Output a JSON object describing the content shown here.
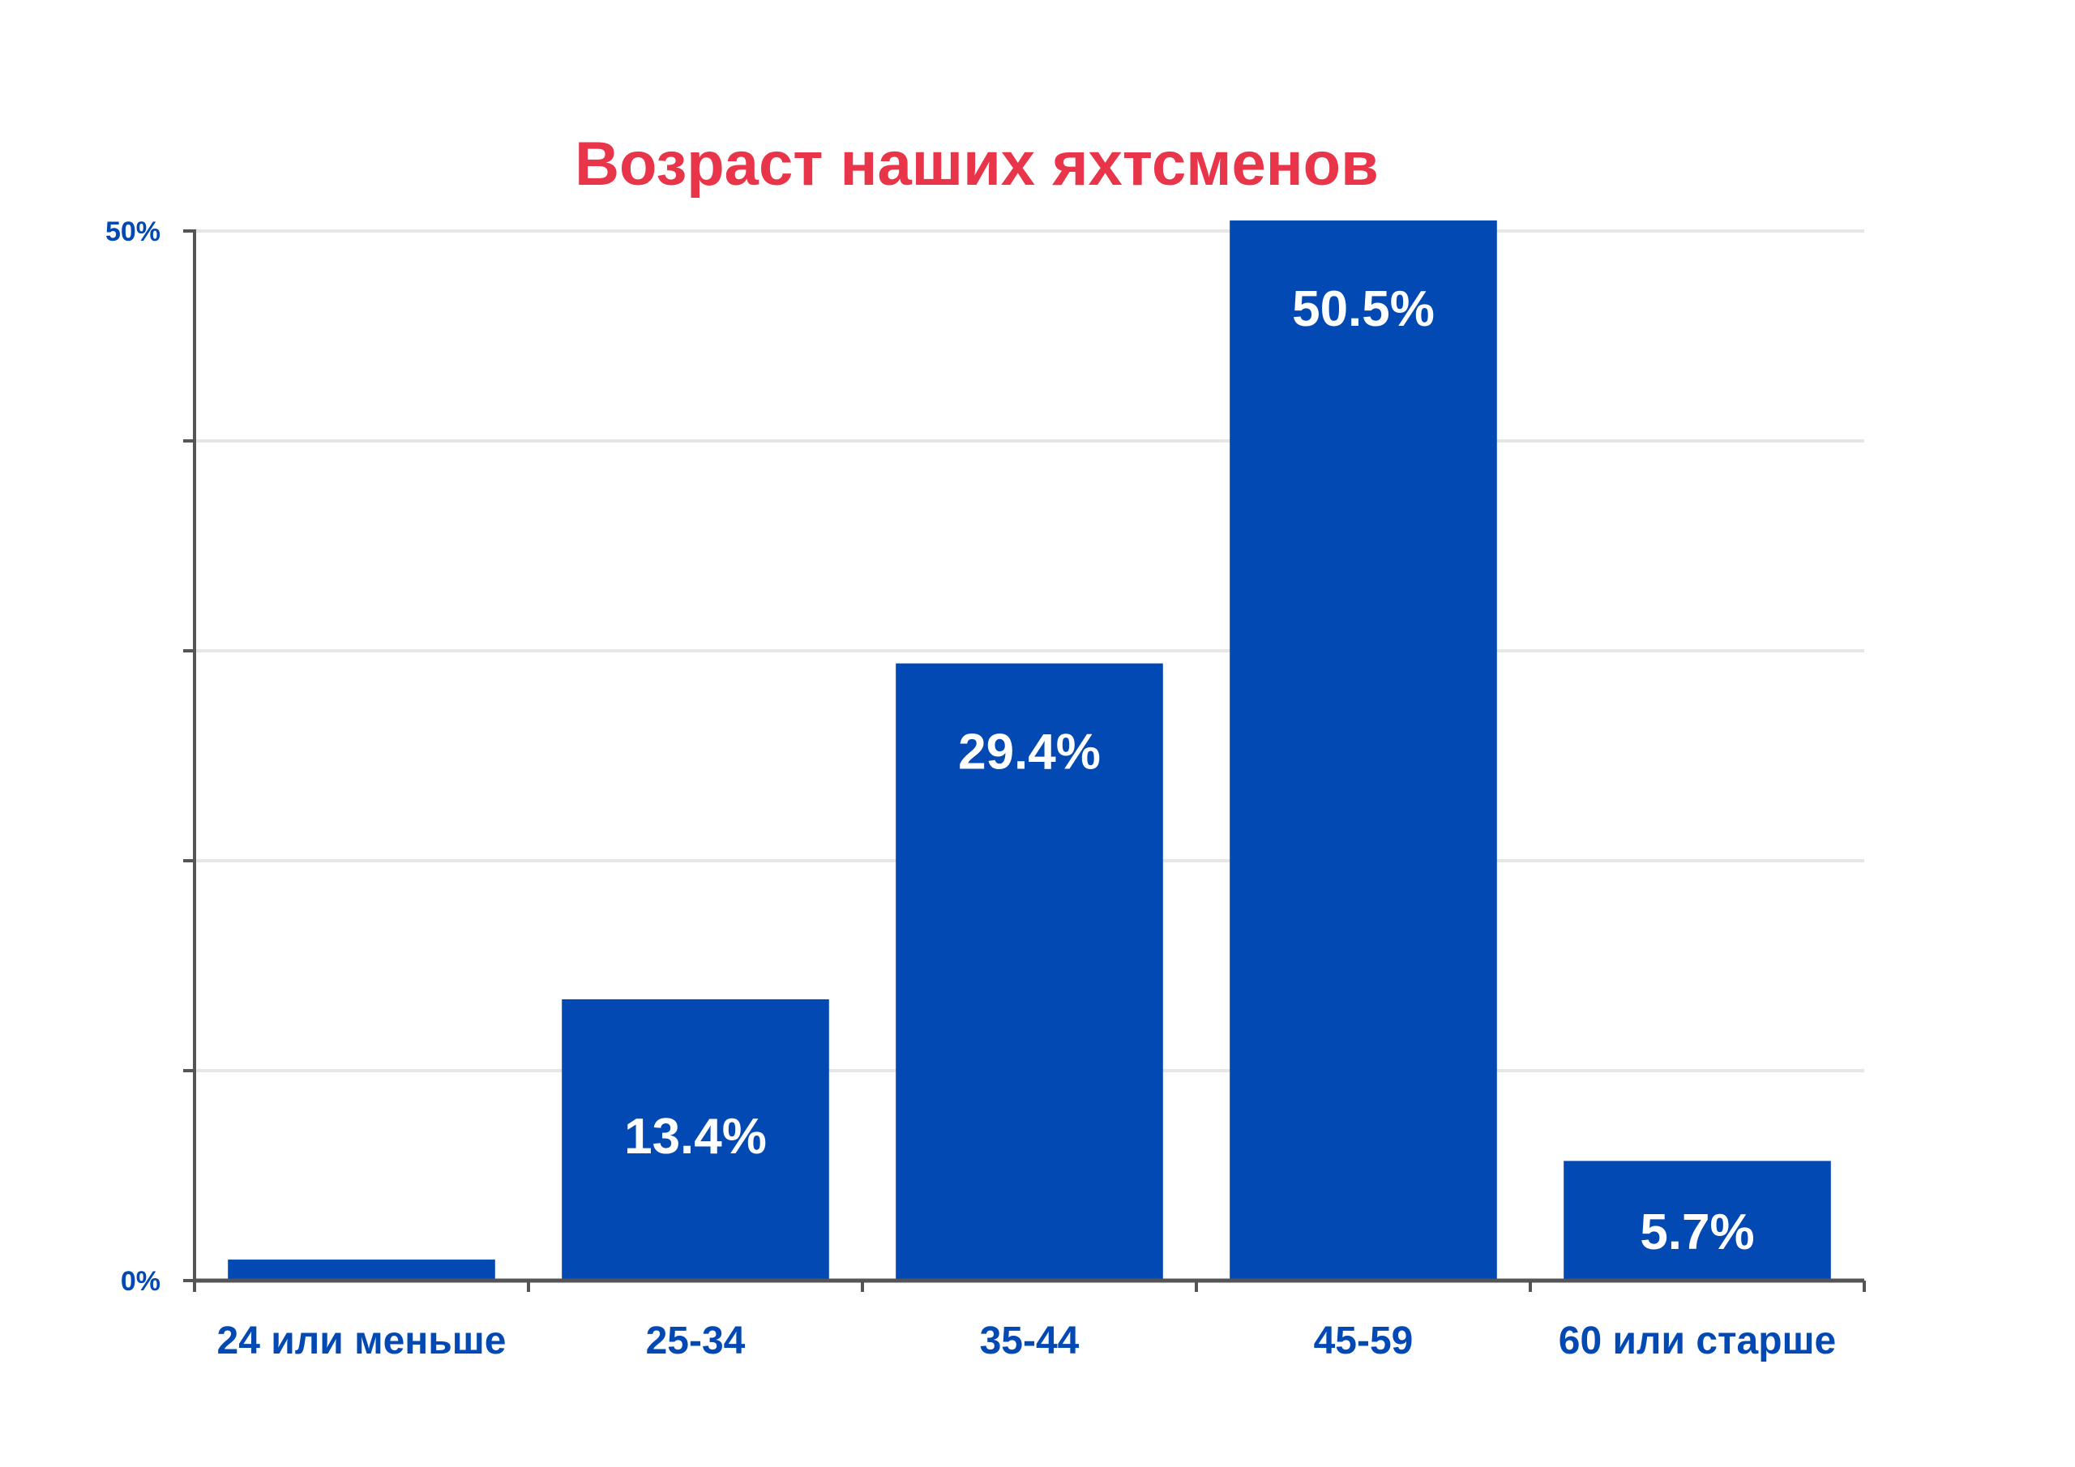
{
  "chart_data": {
    "type": "bar",
    "title": "Возраст наших яхтсменов",
    "xlabel": "",
    "ylabel": "",
    "categories": [
      "24 или меньше",
      "25-34",
      "35-44",
      "45-59",
      "60 или старше"
    ],
    "values": [
      1.0,
      13.4,
      29.4,
      50.5,
      5.7
    ],
    "value_labels": [
      "",
      "13.4%",
      "29.4%",
      "50.5%",
      "5.7%"
    ],
    "ylim": [
      0,
      50
    ],
    "ytick_labels": [
      {
        "value": 0,
        "label": "0%"
      },
      {
        "value": 50,
        "label": "50%"
      }
    ],
    "minor_ticks": [
      10,
      20,
      30,
      40
    ],
    "grid": true,
    "legend": "none",
    "colors": {
      "title": "#e8354a",
      "bar": "#0349b3",
      "axis_text": "#0349b3",
      "value_text": "#ffffff",
      "grid": "#e6e6e6",
      "axis_line": "#555555"
    }
  }
}
